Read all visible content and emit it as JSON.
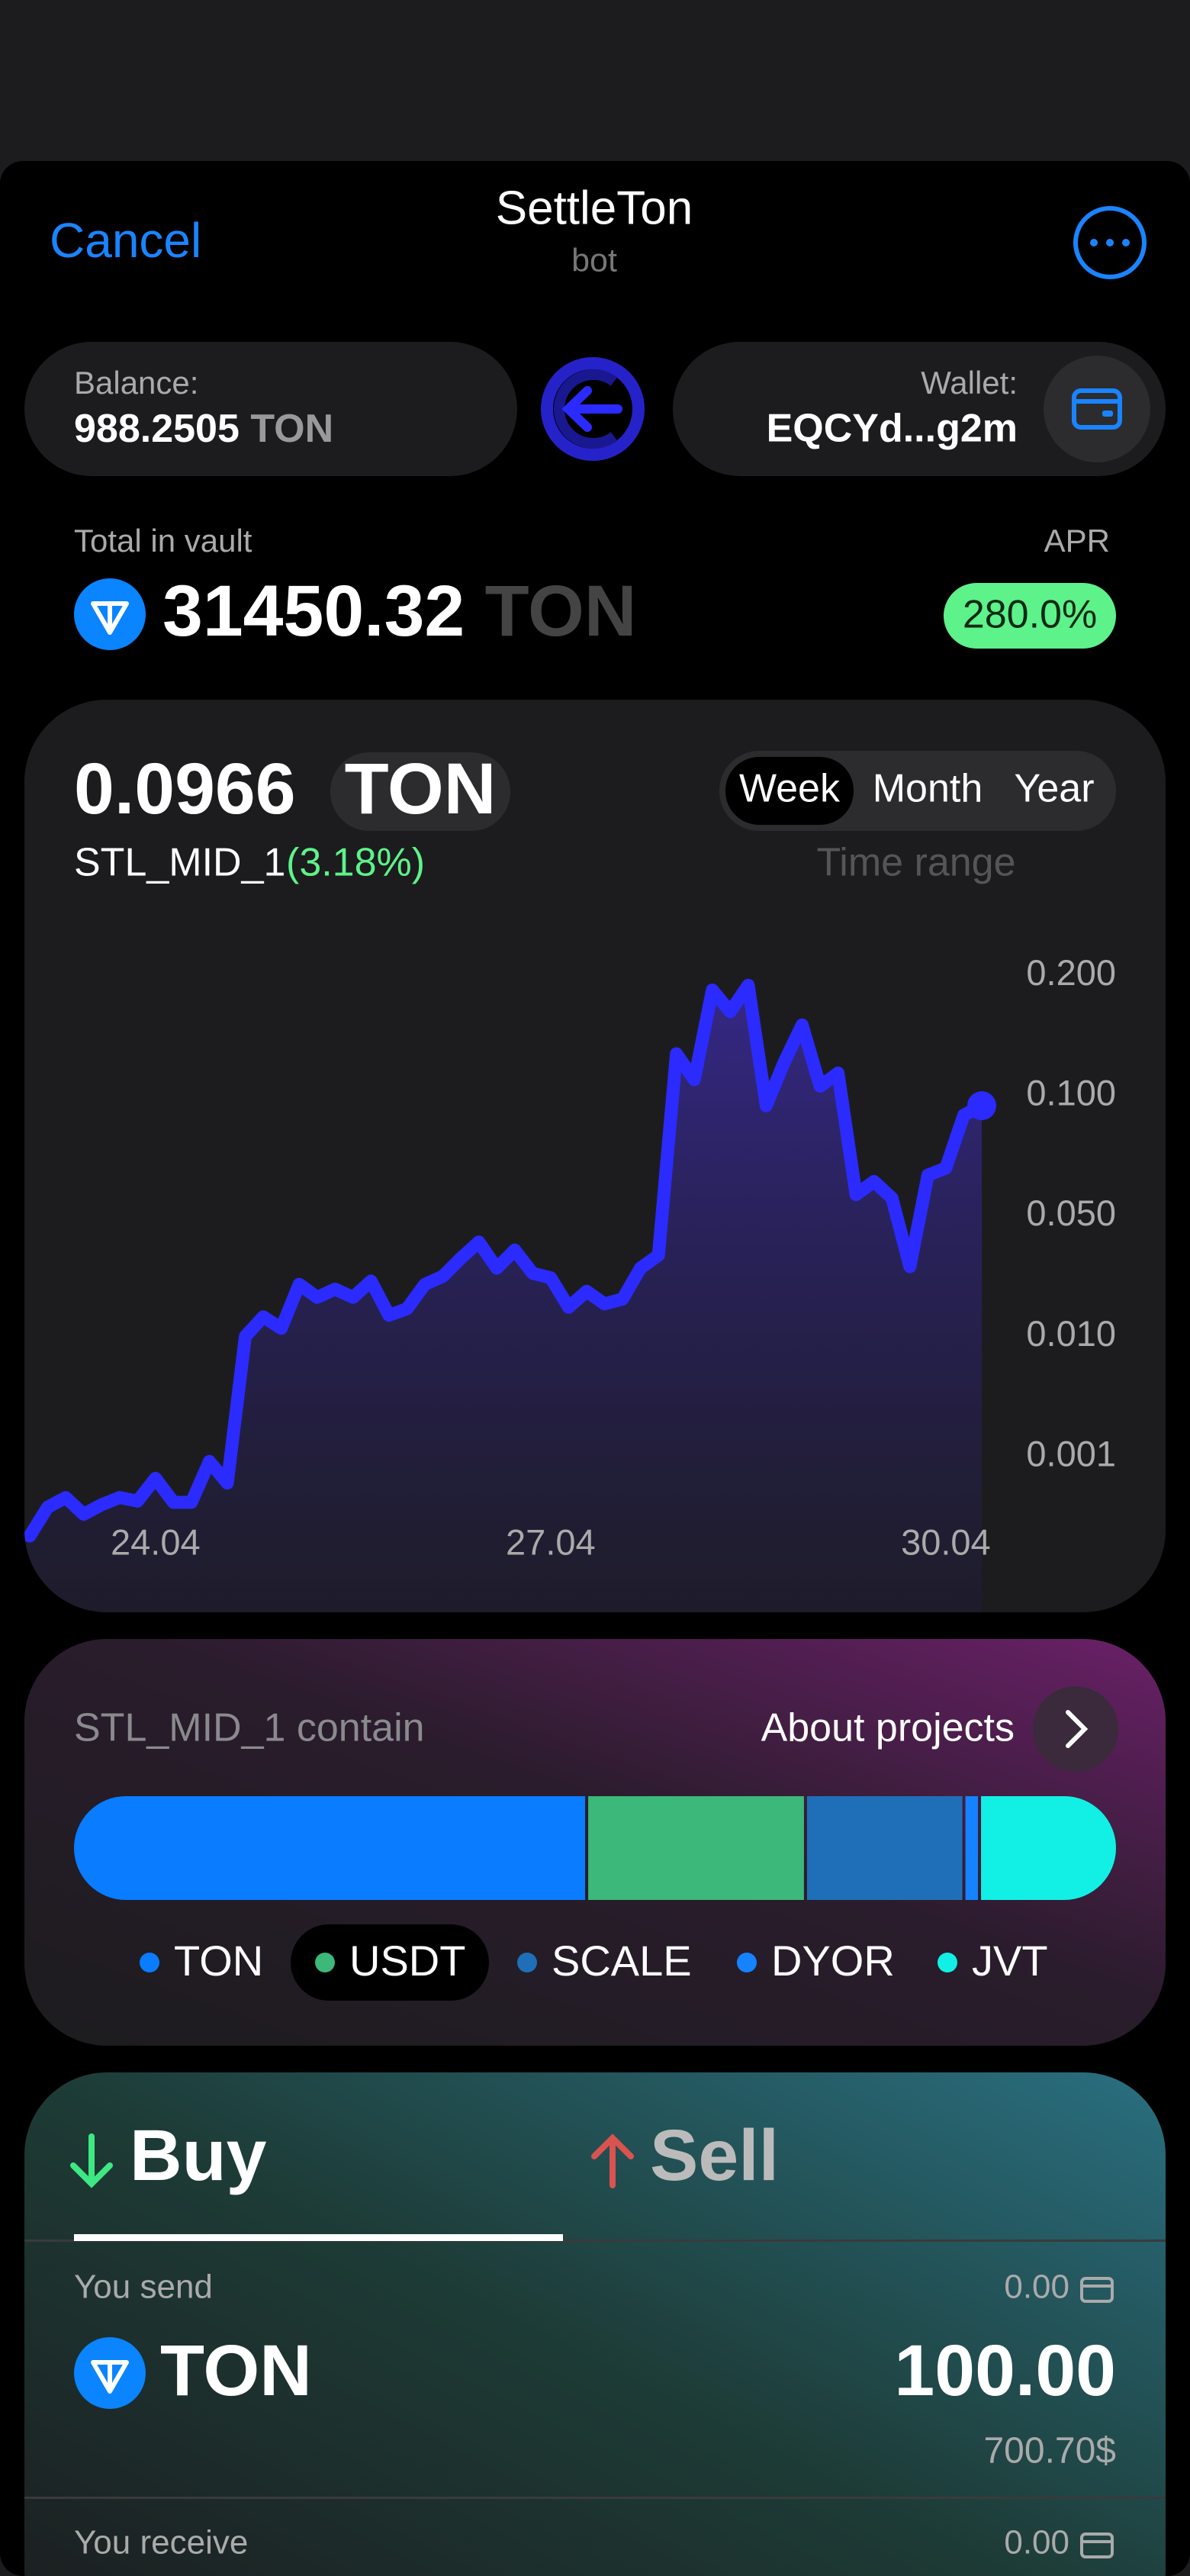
{
  "header": {
    "cancel": "Cancel",
    "title": "SettleTon",
    "subtitle": "bot"
  },
  "balance": {
    "label": "Balance:",
    "amount": "988.2505",
    "unit": "TON"
  },
  "wallet": {
    "label": "Wallet:",
    "address": "EQCYd...g2m"
  },
  "vault": {
    "label": "Total in vault",
    "amount": "31450.32",
    "unit": "TON",
    "apr_label": "APR",
    "apr": "280.0%"
  },
  "price": {
    "amount": "0.0966",
    "unit": "TON",
    "name": "STL_MID_1",
    "change": "(3.18%)",
    "ranges": [
      "Week",
      "Month",
      "Year"
    ],
    "range_label": "Time range"
  },
  "chart_data": [
    {
      "type": "line",
      "color": "#2b2bff",
      "categories": [
        null,
        null,
        null,
        null,
        null,
        null,
        null,
        "24.04",
        null,
        null,
        null,
        null,
        null,
        null,
        null,
        null,
        null,
        null,
        null,
        null,
        null,
        null,
        null,
        null,
        null,
        null,
        null,
        null,
        null,
        "27.04",
        null,
        null,
        null,
        null,
        null,
        null,
        null,
        null,
        null,
        null,
        null,
        null,
        null,
        null,
        null,
        null,
        null,
        null,
        null,
        null,
        null,
        "30.04",
        null,
        null
      ],
      "values": [
        0.00034,
        0.00058,
        0.00066,
        0.00052,
        0.0006,
        0.00066,
        0.00063,
        0.00082,
        0.00062,
        0.00062,
        0.00096,
        0.00078,
        0.01,
        0.0165,
        0.0127,
        0.0273,
        0.023,
        0.0257,
        0.023,
        0.0284,
        0.017,
        0.0192,
        0.0273,
        0.03,
        0.036,
        0.0414,
        0.0327,
        0.0387,
        0.031,
        0.0295,
        0.0197,
        0.025,
        0.0208,
        0.0224,
        0.0327,
        0.037,
        0.135,
        0.1135,
        0.188,
        0.17,
        0.192,
        0.0959,
        0.128,
        0.159,
        0.108,
        0.119,
        0.0589,
        0.0644,
        0.0575,
        0.0332,
        0.067,
        0.07,
        0.092,
        0.0959
      ],
      "ylim": [
        0,
        0.3
      ],
      "yticks": [
        {
          "value": 0.001,
          "label": "0.001"
        },
        {
          "value": 0.01,
          "label": "0.010"
        },
        {
          "value": 0.05,
          "label": "0.050"
        },
        {
          "value": 0.1,
          "label": "0.100"
        },
        {
          "value": 0.2,
          "label": "0.200"
        }
      ]
    },
    {
      "type": "stacked-bar",
      "title": "STL_MID_1 contain",
      "link": "About projects",
      "xlim": [
        0,
        100
      ],
      "series": [
        {
          "name": "TON",
          "color": "#0a7cff",
          "values": [
            49.2
          ]
        },
        {
          "name": "USDT",
          "color": "#3bb87a",
          "values": [
            21.0
          ]
        },
        {
          "name": "SCALE",
          "color": "#1f6fb8",
          "values": [
            15.2
          ]
        },
        {
          "name": "DYOR",
          "color": "#1582ff",
          "values": [
            1.5
          ]
        },
        {
          "name": "JVT",
          "color": "#12f0e6",
          "values": [
            13.1
          ]
        }
      ]
    }
  ],
  "trade": {
    "tabs": [
      "Buy",
      "Sell"
    ],
    "send_label": "You send",
    "send_balance": "0.00",
    "send_token": "TON",
    "send_amount": "100.00",
    "send_usd": "700.70$",
    "receive_label": "You receive",
    "receive_balance": "0.00"
  }
}
